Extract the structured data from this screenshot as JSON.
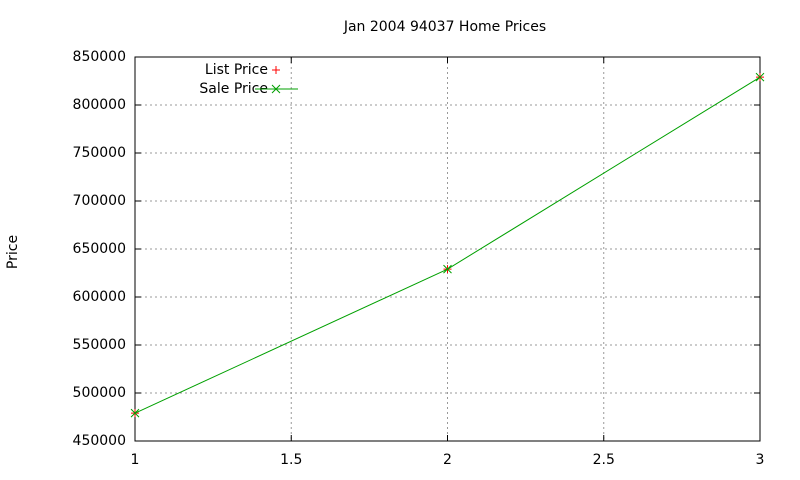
{
  "chart_data": {
    "type": "line",
    "title": "Jan 2004 94037 Home Prices",
    "y_label": "Price",
    "x": [
      1,
      2,
      3
    ],
    "series": [
      {
        "name": "List Price",
        "color": "#ff0000",
        "style": "points",
        "values": [
          479000,
          629000,
          829000
        ]
      },
      {
        "name": "Sale Price",
        "color": "#00a000",
        "style": "linespoints",
        "values": [
          479000,
          629000,
          829000
        ]
      }
    ],
    "xlim": [
      1,
      3
    ],
    "xticks": [
      1,
      1.5,
      2,
      2.5,
      3
    ],
    "ylim": [
      450000,
      850000
    ],
    "yticks": [
      450000,
      500000,
      550000,
      600000,
      650000,
      700000,
      750000,
      800000,
      850000
    ],
    "grid": true,
    "legend": "top-left"
  }
}
